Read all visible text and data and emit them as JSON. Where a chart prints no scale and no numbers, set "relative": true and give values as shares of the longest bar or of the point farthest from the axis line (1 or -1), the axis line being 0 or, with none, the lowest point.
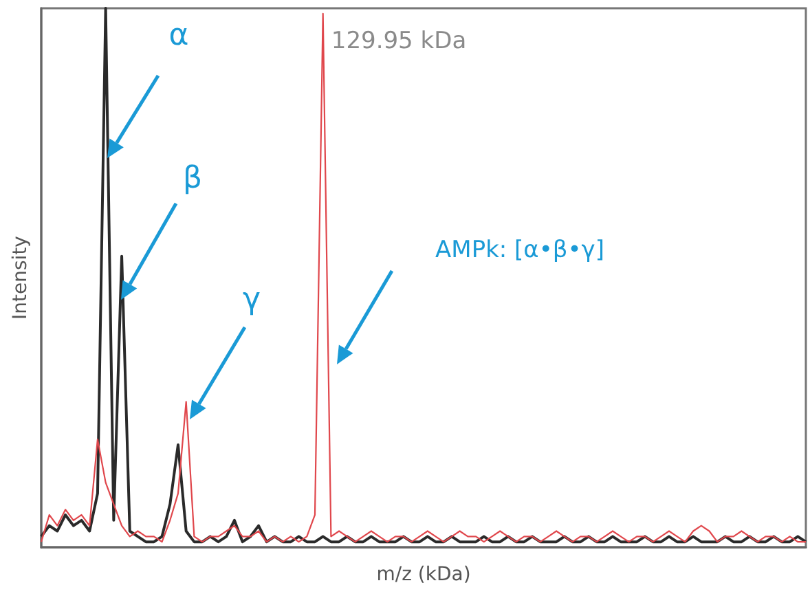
{
  "chart_data": {
    "type": "line",
    "relative": true,
    "xlabel": "m/z (kDa)",
    "ylabel": "Intensity",
    "grid": false,
    "marker": "none",
    "line_style": "solid",
    "annotations": [
      "α",
      "β",
      "γ",
      "AMPk: [α•β•γ]",
      "129.95 kDa"
    ],
    "categories": [
      null,
      null,
      null,
      null,
      null,
      null,
      null,
      null,
      null,
      null,
      null,
      null,
      null,
      null,
      null,
      null,
      null,
      null,
      null,
      null,
      null,
      null,
      null,
      null,
      null,
      null,
      null,
      null,
      null,
      null,
      null,
      null,
      null,
      null,
      null,
      null,
      null,
      null,
      null,
      null,
      null,
      null,
      null,
      null,
      null,
      null,
      null,
      null,
      null,
      null,
      null,
      null,
      null,
      null,
      null,
      null,
      null,
      null,
      null,
      null,
      null,
      null,
      null,
      null,
      null,
      null,
      null,
      null,
      null,
      null,
      null,
      null,
      null,
      null,
      null,
      null,
      null,
      null,
      null,
      null,
      null,
      null,
      null,
      null,
      null,
      null,
      null,
      null,
      null,
      null,
      null,
      null,
      null,
      null,
      null,
      null
    ],
    "series": [
      {
        "color": "#2a2a2a",
        "values": [
          0.02,
          0.04,
          0.03,
          0.06,
          0.04,
          0.05,
          0.03,
          0.1,
          1,
          0.05,
          0.54,
          0.03,
          0.02,
          0.01,
          0.01,
          0.02,
          0.08,
          0.19,
          0.03,
          0.01,
          0.01,
          0.02,
          0.01,
          0.02,
          0.05,
          0.01,
          0.02,
          0.04,
          0.01,
          0.02,
          0.01,
          0.01,
          0.02,
          0.01,
          0.01,
          0.02,
          0.01,
          0.01,
          0.02,
          0.01,
          0.01,
          0.02,
          0.01,
          0.01,
          0.01,
          0.02,
          0.01,
          0.01,
          0.02,
          0.01,
          0.01,
          0.02,
          0.01,
          0.01,
          0.01,
          0.02,
          0.01,
          0.01,
          0.02,
          0.01,
          0.01,
          0.02,
          0.01,
          0.01,
          0.01,
          0.02,
          0.01,
          0.01,
          0.02,
          0.01,
          0.01,
          0.02,
          0.01,
          0.01,
          0.01,
          0.02,
          0.01,
          0.01,
          0.02,
          0.01,
          0.01,
          0.02,
          0.01,
          0.01,
          0.01,
          0.02,
          0.01,
          0.01,
          0.02,
          0.01,
          0.01,
          0.02,
          0.01,
          0.01,
          0.02,
          0.01
        ]
      },
      {
        "color": "#e0474c",
        "values": [
          0.01,
          0.06,
          0.04,
          0.07,
          0.05,
          0.06,
          0.04,
          0.2,
          0.12,
          0.08,
          0.04,
          0.02,
          0.03,
          0.02,
          0.02,
          0.01,
          0.05,
          0.1,
          0.27,
          0.02,
          0.01,
          0.02,
          0.02,
          0.03,
          0.04,
          0.02,
          0.02,
          0.03,
          0.01,
          0.02,
          0.01,
          0.02,
          0.01,
          0.02,
          0.06,
          0.99,
          0.02,
          0.03,
          0.02,
          0.01,
          0.02,
          0.03,
          0.02,
          0.01,
          0.02,
          0.02,
          0.01,
          0.02,
          0.03,
          0.02,
          0.01,
          0.02,
          0.03,
          0.02,
          0.02,
          0.01,
          0.02,
          0.03,
          0.02,
          0.01,
          0.02,
          0.02,
          0.01,
          0.02,
          0.03,
          0.02,
          0.01,
          0.02,
          0.02,
          0.01,
          0.02,
          0.03,
          0.02,
          0.01,
          0.02,
          0.02,
          0.01,
          0.02,
          0.03,
          0.02,
          0.01,
          0.03,
          0.04,
          0.03,
          0.01,
          0.02,
          0.02,
          0.03,
          0.02,
          0.01,
          0.02,
          0.02,
          0.01,
          0.02,
          0.01,
          0.01
        ]
      }
    ]
  }
}
